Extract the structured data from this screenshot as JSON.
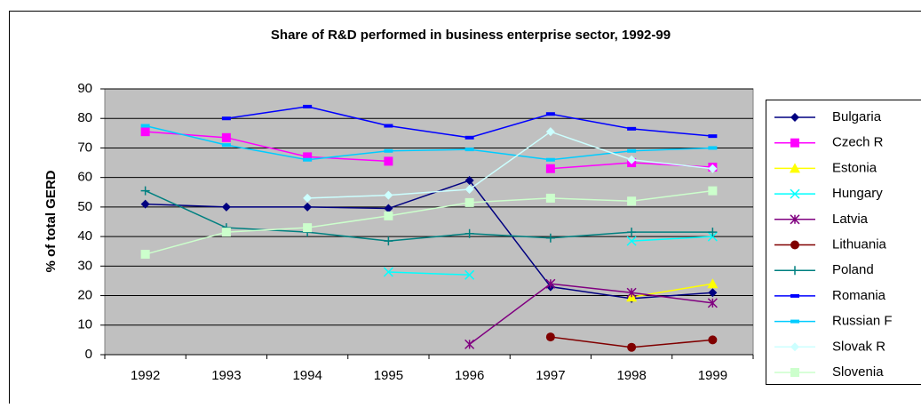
{
  "chart_data": {
    "type": "line",
    "title": "Share of R&D performed in business enterprise sector, 1992-99",
    "y_label": "% of total GERD",
    "categories": [
      "1992",
      "1993",
      "1994",
      "1995",
      "1996",
      "1997",
      "1998",
      "1999"
    ],
    "ylim": [
      0,
      90
    ],
    "yticks": [
      0,
      10,
      20,
      30,
      40,
      50,
      60,
      70,
      80,
      90
    ],
    "grid": true,
    "legend": "right",
    "series": [
      {
        "name": "Bulgaria",
        "color": "#000080",
        "marker": "diamond",
        "values": [
          51,
          50,
          50,
          49.5,
          59,
          23,
          19,
          21
        ]
      },
      {
        "name": "Czech R",
        "color": "#ff00ff",
        "marker": "square",
        "values": [
          75.5,
          73.5,
          67,
          65.5,
          null,
          63,
          65,
          63.5
        ]
      },
      {
        "name": "Estonia",
        "color": "#ffff00",
        "marker": "triangle",
        "values": [
          null,
          null,
          null,
          null,
          null,
          null,
          19.5,
          24
        ]
      },
      {
        "name": "Hungary",
        "color": "#00ffff",
        "marker": "x",
        "values": [
          null,
          null,
          null,
          28,
          27,
          null,
          38.5,
          40
        ]
      },
      {
        "name": "Latvia",
        "color": "#800080",
        "marker": "star",
        "values": [
          null,
          null,
          null,
          null,
          3.5,
          24,
          21,
          17.5
        ]
      },
      {
        "name": "Lithuania",
        "color": "#800000",
        "marker": "circle",
        "values": [
          null,
          null,
          null,
          null,
          null,
          6,
          2.5,
          5
        ]
      },
      {
        "name": "Poland",
        "color": "#008080",
        "marker": "plus",
        "values": [
          55.5,
          43,
          41.5,
          38.5,
          41,
          39.5,
          41.5,
          41.5
        ]
      },
      {
        "name": "Romania",
        "color": "#0000ff",
        "marker": "dash",
        "values": [
          null,
          80,
          84,
          77.5,
          73.5,
          81.5,
          76.5,
          74
        ]
      },
      {
        "name": "Russian F",
        "color": "#00ccff",
        "marker": "dash",
        "values": [
          77.5,
          71,
          66,
          69,
          69.5,
          66,
          69,
          70
        ]
      },
      {
        "name": "Slovak R",
        "color": "#ccffff",
        "marker": "diamond",
        "values": [
          null,
          null,
          53,
          54,
          56,
          75.5,
          66,
          63
        ]
      },
      {
        "name": "Slovenia",
        "color": "#ccffcc",
        "marker": "square",
        "values": [
          34,
          41.5,
          43,
          47,
          51.5,
          53,
          52,
          55.5
        ]
      }
    ]
  }
}
